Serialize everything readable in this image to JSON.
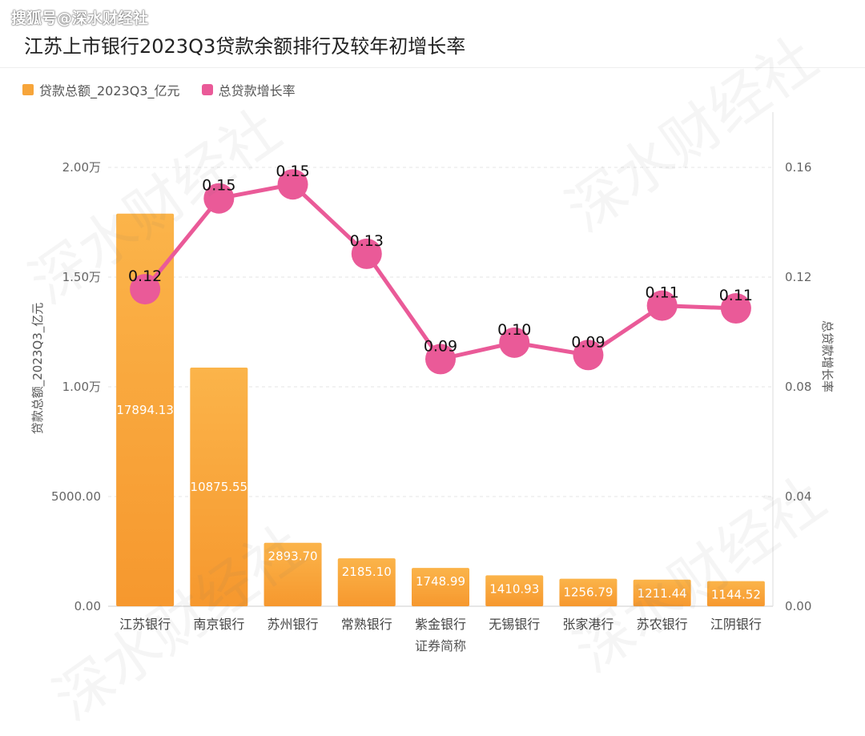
{
  "brand": "搜狐号@深水财经社",
  "watermark": "深水财经社",
  "chart_data": {
    "type": "bar",
    "title": "江苏上市银行2023Q3贷款余额排行及较年初增长率",
    "categories": [
      "江苏银行",
      "南京银行",
      "苏州银行",
      "常熟银行",
      "紫金银行",
      "无锡银行",
      "张家港行",
      "苏农银行",
      "江阴银行"
    ],
    "xlabel": "证券简称",
    "ylabel": "贷款总额_2023Q3_亿元",
    "y2label": "总贷款增长率",
    "ylim": [
      0,
      20000
    ],
    "y2lim": [
      0,
      0.16
    ],
    "yticks": [
      "0.00",
      "5000.00",
      "1.00万",
      "1.50万",
      "2.00万"
    ],
    "y2ticks": [
      "0.00",
      "0.04",
      "0.08",
      "0.12",
      "0.16"
    ],
    "legend_position": "top-left",
    "grid": true,
    "series": [
      {
        "name": "贷款总额_2023Q3_亿元",
        "type": "bar",
        "color": "#f7a53a",
        "values": [
          17894.13,
          10875.55,
          2893.7,
          2185.1,
          1748.99,
          1410.93,
          1256.79,
          1211.44,
          1144.52
        ],
        "labels": [
          "17894.13",
          "10875.55",
          "2893.70",
          "2185.10",
          "1748.99",
          "1410.93",
          "1256.79",
          "1211.44",
          "1144.52"
        ]
      },
      {
        "name": "总贷款增长率",
        "type": "line",
        "color": "#ea5a98",
        "values": [
          0.1156,
          0.1487,
          0.1538,
          0.1285,
          0.0901,
          0.0961,
          0.0916,
          0.1096,
          0.1086
        ],
        "labels": [
          "0.12",
          "0.15",
          "0.15",
          "0.13",
          "0.09",
          "0.10",
          "0.09",
          "0.11",
          "0.11"
        ]
      }
    ]
  }
}
